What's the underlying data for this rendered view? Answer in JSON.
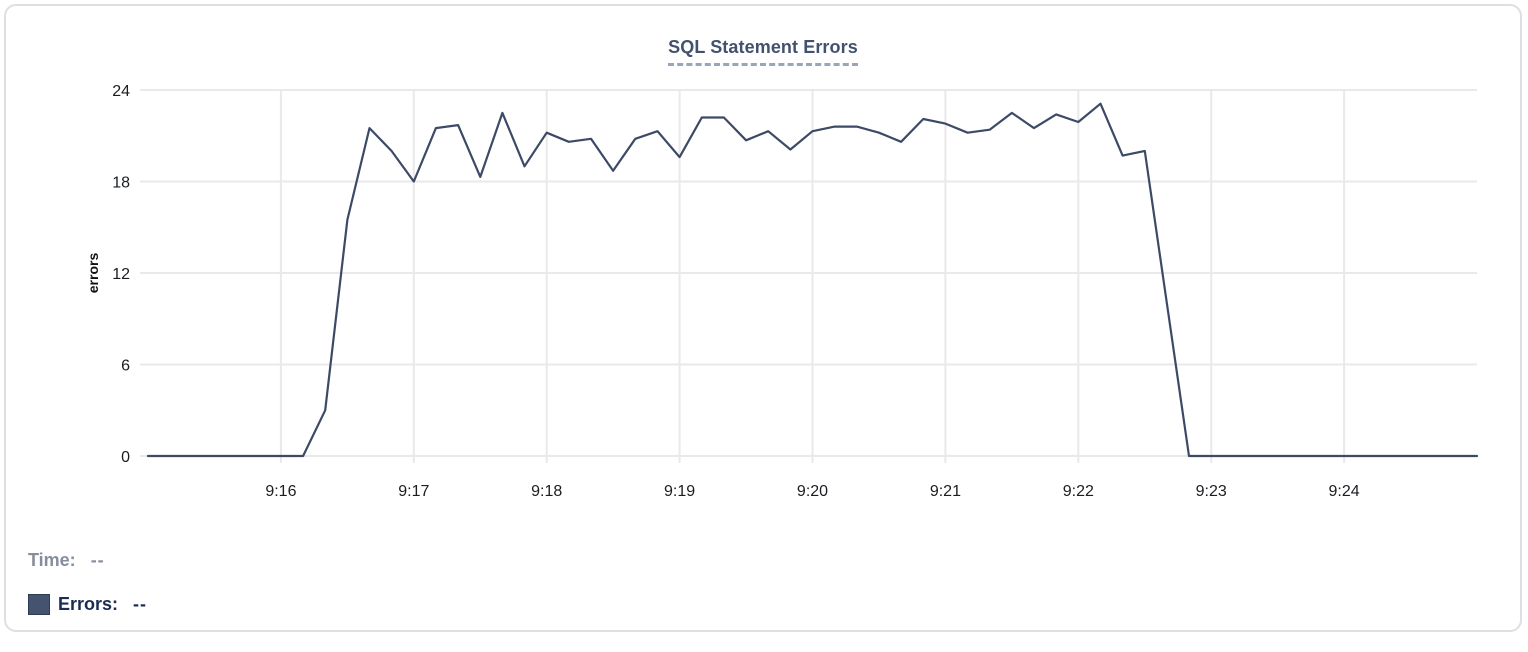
{
  "chart_data": {
    "type": "line",
    "title": "SQL Statement Errors",
    "xlabel": "",
    "ylabel": "errors",
    "series_name": "Errors",
    "line_color": "#3d4a66",
    "grid": true,
    "grid_color": "#e9e9e9",
    "tick_text_color": "#1a1d21",
    "ylim": [
      0,
      24
    ],
    "y_ticks": [
      0,
      6,
      12,
      18,
      24
    ],
    "x_range": [
      "9:15:00",
      "9:25:00"
    ],
    "x_ticks": [
      "9:16",
      "9:17",
      "9:18",
      "9:19",
      "9:20",
      "9:21",
      "9:22",
      "9:23",
      "9:24"
    ],
    "times": [
      "9:15:00",
      "9:15:10",
      "9:15:20",
      "9:15:30",
      "9:15:40",
      "9:15:50",
      "9:16:00",
      "9:16:10",
      "9:16:20",
      "9:16:30",
      "9:16:40",
      "9:16:50",
      "9:17:00",
      "9:17:10",
      "9:17:20",
      "9:17:30",
      "9:17:40",
      "9:17:50",
      "9:18:00",
      "9:18:10",
      "9:18:20",
      "9:18:30",
      "9:18:40",
      "9:18:50",
      "9:19:00",
      "9:19:10",
      "9:19:20",
      "9:19:30",
      "9:19:40",
      "9:19:50",
      "9:20:00",
      "9:20:10",
      "9:20:20",
      "9:20:30",
      "9:20:40",
      "9:20:50",
      "9:21:00",
      "9:21:10",
      "9:21:20",
      "9:21:30",
      "9:21:40",
      "9:21:50",
      "9:22:00",
      "9:22:10",
      "9:22:20",
      "9:22:30",
      "9:22:40",
      "9:22:50",
      "9:23:00",
      "9:23:10",
      "9:23:20",
      "9:23:30",
      "9:23:40",
      "9:23:50",
      "9:24:00",
      "9:24:10",
      "9:24:20",
      "9:24:30",
      "9:24:40",
      "9:24:50",
      "9:25:00"
    ],
    "values": [
      0,
      0,
      0,
      0,
      0,
      0,
      0,
      0,
      3,
      15.5,
      21.5,
      20,
      18,
      21.5,
      21.7,
      18.3,
      22.5,
      19,
      21.2,
      20.6,
      20.8,
      18.7,
      20.8,
      21.3,
      19.6,
      22.2,
      22.2,
      20.7,
      21.3,
      20.1,
      21.3,
      21.6,
      21.6,
      21.2,
      20.6,
      22.1,
      21.8,
      21.2,
      21.4,
      22.5,
      21.5,
      22.4,
      21.9,
      23.1,
      19.7,
      20,
      10,
      0,
      0,
      0,
      0,
      0,
      0,
      0,
      0,
      0,
      0,
      0,
      0,
      0,
      0
    ]
  },
  "legend": {
    "swatch_color": "#44546f",
    "rows": [
      {
        "label": "Time:",
        "value": "--"
      },
      {
        "label": "Errors:",
        "value": "--"
      }
    ]
  }
}
